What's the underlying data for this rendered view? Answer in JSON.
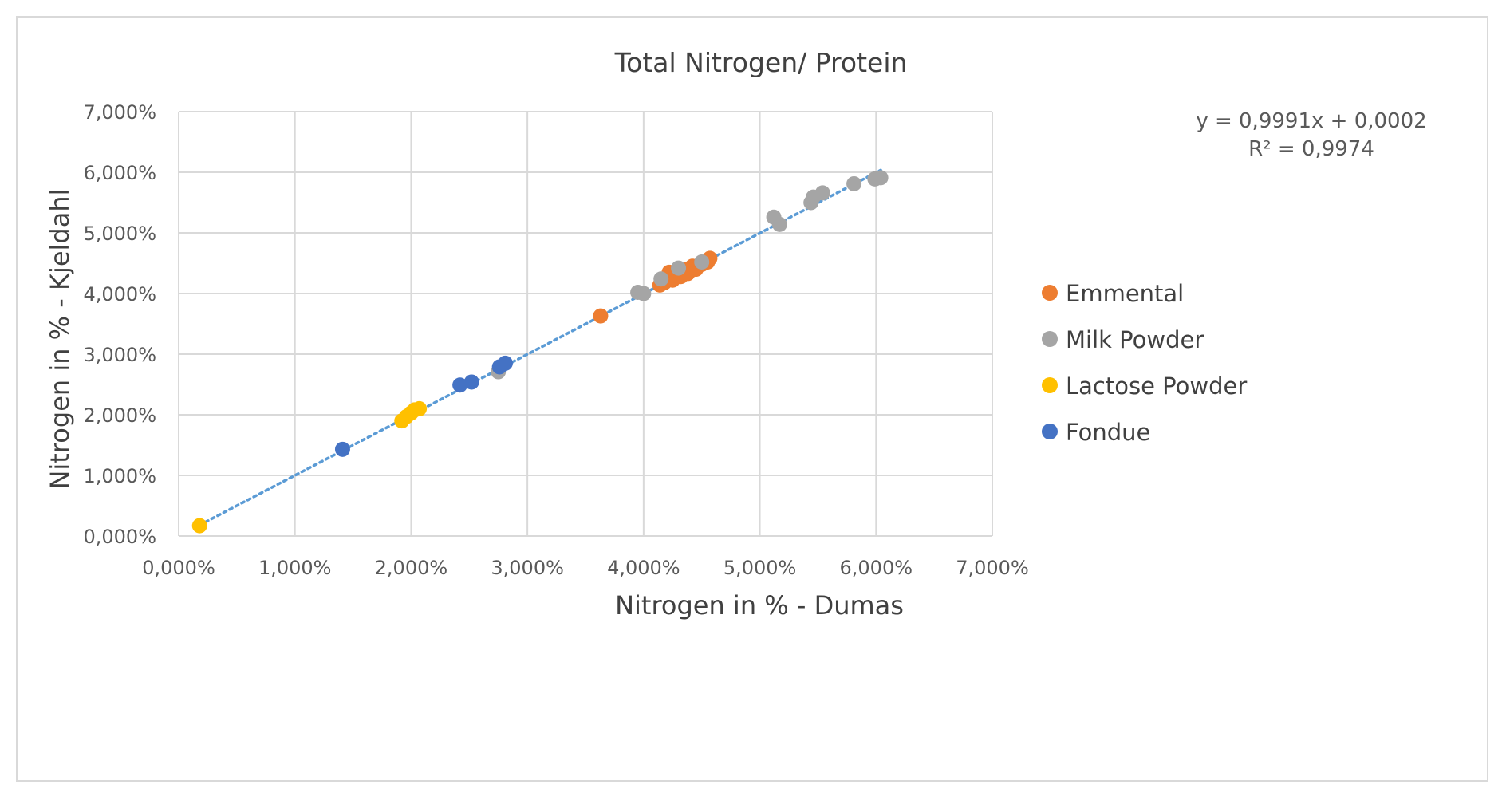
{
  "chart_data": {
    "type": "scatter",
    "title": "Total Nitrogen/ Protein",
    "xlabel": "Nitrogen in % - Dumas",
    "ylabel": "Nitrogen in % - Kjeldahl",
    "xlim": [
      0,
      7
    ],
    "ylim": [
      0,
      7
    ],
    "x_ticks": [
      0,
      1,
      2,
      3,
      4,
      5,
      6,
      7
    ],
    "y_ticks": [
      0,
      1,
      2,
      3,
      4,
      5,
      6,
      7
    ],
    "x_tick_labels": [
      "0,000%",
      "1,000%",
      "2,000%",
      "3,000%",
      "4,000%",
      "5,000%",
      "6,000%",
      "7,000%"
    ],
    "y_tick_labels": [
      "0,000%",
      "1,000%",
      "2,000%",
      "3,000%",
      "4,000%",
      "5,000%",
      "6,000%",
      "7,000%"
    ],
    "grid": true,
    "legend_position": "right",
    "series": [
      {
        "name": "Emmental",
        "color": "#ED7D31",
        "points": [
          [
            3.63,
            3.63
          ],
          [
            4.14,
            4.14
          ],
          [
            4.18,
            4.18
          ],
          [
            4.22,
            4.35
          ],
          [
            4.25,
            4.22
          ],
          [
            4.28,
            4.3
          ],
          [
            4.32,
            4.28
          ],
          [
            4.35,
            4.4
          ],
          [
            4.38,
            4.33
          ],
          [
            4.42,
            4.45
          ],
          [
            4.45,
            4.4
          ],
          [
            4.5,
            4.48
          ],
          [
            4.55,
            4.52
          ],
          [
            4.57,
            4.58
          ]
        ]
      },
      {
        "name": "Milk Powder",
        "color": "#A5A5A5",
        "points": [
          [
            2.75,
            2.71
          ],
          [
            3.95,
            4.02
          ],
          [
            4.0,
            4.0
          ],
          [
            4.15,
            4.24
          ],
          [
            4.3,
            4.42
          ],
          [
            4.5,
            4.52
          ],
          [
            5.12,
            5.26
          ],
          [
            5.17,
            5.14
          ],
          [
            5.44,
            5.5
          ],
          [
            5.46,
            5.59
          ],
          [
            5.54,
            5.66
          ],
          [
            5.81,
            5.81
          ],
          [
            5.99,
            5.89
          ],
          [
            6.04,
            5.91
          ]
        ]
      },
      {
        "name": "Lactose Powder",
        "color": "#FFC000",
        "points": [
          [
            0.18,
            0.17
          ],
          [
            1.92,
            1.9
          ],
          [
            1.96,
            1.97
          ],
          [
            2.0,
            2.03
          ],
          [
            2.03,
            2.08
          ],
          [
            2.07,
            2.1
          ]
        ]
      },
      {
        "name": "Fondue",
        "color": "#4472C4",
        "points": [
          [
            1.41,
            1.43
          ],
          [
            2.42,
            2.49
          ],
          [
            2.52,
            2.54
          ],
          [
            2.76,
            2.79
          ],
          [
            2.81,
            2.85
          ]
        ]
      }
    ],
    "trendline": {
      "type": "linear",
      "color": "#5B9BD5",
      "style": "dotted",
      "x_range": [
        0.18,
        6.04
      ],
      "slope": 0.9991,
      "intercept": 0.0002,
      "equation_label": "y = 0,9991x + 0,0002",
      "r2_label": "R² = 0,9974"
    }
  }
}
